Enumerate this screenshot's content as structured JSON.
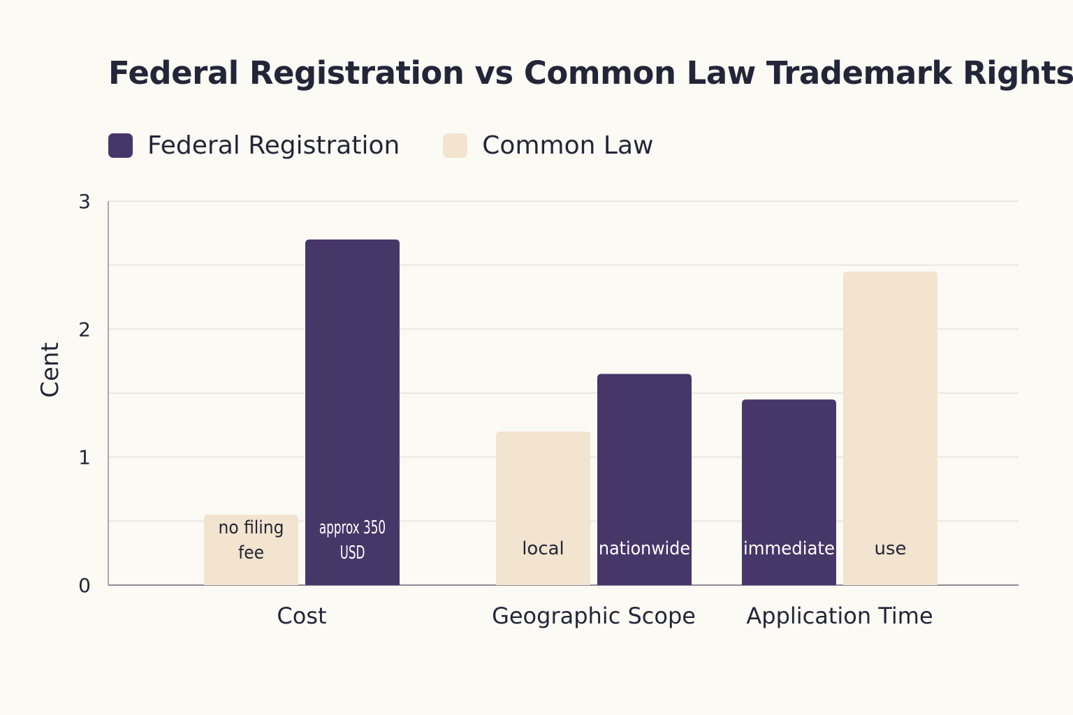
{
  "chart_data": {
    "type": "bar",
    "title": "Federal Registration vs Common Law Trademark Rights",
    "ylabel": "Cent",
    "xlabel": "",
    "ylim": [
      0,
      3
    ],
    "yticks": [
      0,
      1,
      2,
      3
    ],
    "grid": true,
    "legend_position": "top-left",
    "categories": [
      "Cost",
      "Geographic Scope",
      "Application Time"
    ],
    "groups": [
      {
        "category": "Cost",
        "bars": [
          {
            "series": "Common Law",
            "value": 0.55,
            "label": "no filing fee"
          },
          {
            "series": "Federal Registration",
            "value": 2.7,
            "label": "approx 350 USD"
          }
        ]
      },
      {
        "category": "Geographic Scope",
        "bars": [
          {
            "series": "Common Law",
            "value": 1.2,
            "label": "local"
          },
          {
            "series": "Federal Registration",
            "value": 1.65,
            "label": "nationwide"
          }
        ]
      },
      {
        "category": "Application Time",
        "bars": [
          {
            "series": "Federal Registration",
            "value": 1.45,
            "label": "immediate"
          },
          {
            "series": "Common Law",
            "value": 2.45,
            "label": "use"
          }
        ]
      }
    ],
    "series": [
      {
        "name": "Federal Registration",
        "color": "#473769"
      },
      {
        "name": "Common Law",
        "color": "#f2e4ce"
      }
    ]
  }
}
